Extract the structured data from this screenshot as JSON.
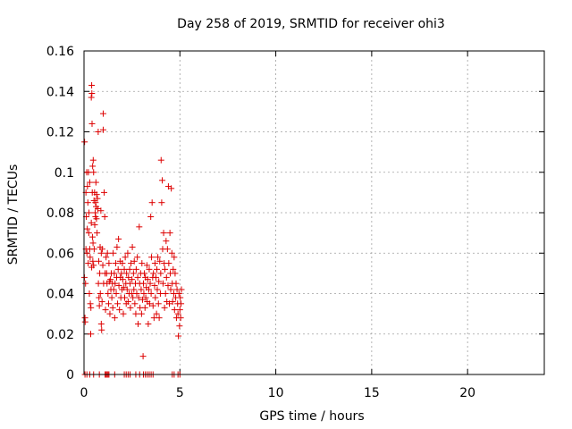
{
  "chart_data": {
    "type": "scatter",
    "title": "Day 258 of 2019, SRMTID for receiver ohi3",
    "xlabel": "GPS time / hours",
    "ylabel": "SRMTID / TECUs",
    "xlim": [
      0,
      24
    ],
    "ylim": [
      0,
      0.16
    ],
    "xticks": [
      "0",
      "5",
      "10",
      "15",
      "20"
    ],
    "yticks": [
      "0",
      "0.02",
      "0.04",
      "0.06",
      "0.08",
      "0.1",
      "0.12",
      "0.14",
      "0.16"
    ],
    "grid": true,
    "marker": "plus",
    "color": "#dd0000",
    "series": [
      {
        "points": [
          [
            0.02,
            0.048
          ],
          [
            0.03,
            0.115
          ],
          [
            0.05,
            0.028
          ],
          [
            0.06,
            0.026
          ],
          [
            0.08,
            0.045
          ],
          [
            0.1,
            0.062
          ],
          [
            0.1,
            0.09
          ],
          [
            0.12,
            0.078
          ],
          [
            0.14,
            0.1
          ],
          [
            0.15,
            0.06
          ],
          [
            0.17,
            0.072
          ],
          [
            0.18,
            0.093
          ],
          [
            0.2,
            0.085
          ],
          [
            0.22,
            0.055
          ],
          [
            0.23,
            0.1
          ],
          [
            0.25,
            0.07
          ],
          [
            0.26,
            0.08
          ],
          [
            0.28,
            0.04
          ],
          [
            0.3,
            0.095
          ],
          [
            0.3,
            0.062
          ],
          [
            0.32,
            0.058
          ],
          [
            0.33,
            0.035
          ],
          [
            0.35,
            0.02
          ],
          [
            0.36,
            0.033
          ],
          [
            0.38,
            0.137
          ],
          [
            0.38,
            0.075
          ],
          [
            0.4,
            0.053
          ],
          [
            0.4,
            0.143
          ],
          [
            0.41,
            0.139
          ],
          [
            0.42,
            0.124
          ],
          [
            0.43,
            0.09
          ],
          [
            0.44,
            0.068
          ],
          [
            0.45,
            0.103
          ],
          [
            0.46,
            0.056
          ],
          [
            0.47,
            0.065
          ],
          [
            0.48,
            0.106
          ],
          [
            0.5,
            0.1
          ],
          [
            0.5,
            0.054
          ],
          [
            0.52,
            0.086
          ],
          [
            0.53,
            0.062
          ],
          [
            0.55,
            0.09
          ],
          [
            0.56,
            0.074
          ],
          [
            0.58,
            0.08
          ],
          [
            0.6,
            0.085
          ],
          [
            0.6,
            0.078
          ],
          [
            0.62,
            0.095
          ],
          [
            0.63,
            0.083
          ],
          [
            0.65,
            0.077
          ],
          [
            0.66,
            0.089
          ],
          [
            0.68,
            0.07
          ],
          [
            0.7,
            0.087
          ],
          [
            0.72,
            0.082
          ],
          [
            0.74,
            0.12
          ],
          [
            0.75,
            0.045
          ],
          [
            0.77,
            0.056
          ],
          [
            0.78,
            0.038
          ],
          [
            0.8,
            0.034
          ],
          [
            0.82,
            0.05
          ],
          [
            0.84,
            0.063
          ],
          [
            0.85,
            0.04
          ],
          [
            0.88,
            0.081
          ],
          [
            0.9,
            0.025
          ],
          [
            0.9,
            0.06
          ],
          [
            0.92,
            0.022
          ],
          [
            0.94,
            0.036
          ],
          [
            0.95,
            0.062
          ],
          [
            0.98,
            0.054
          ],
          [
            1.0,
            0.129
          ],
          [
            1.0,
            0.121
          ],
          [
            1.02,
            0.045
          ],
          [
            1.05,
            0.09
          ],
          [
            1.08,
            0.078
          ],
          [
            1.1,
            0.05
          ],
          [
            1.12,
            0.032
          ],
          [
            1.15,
            0.058
          ],
          [
            1.18,
            0.05
          ],
          [
            1.2,
            0.045
          ],
          [
            1.22,
            0.06
          ],
          [
            1.25,
            0.04
          ],
          [
            1.28,
            0.035
          ],
          [
            1.3,
            0.055
          ],
          [
            1.32,
            0.046
          ],
          [
            1.35,
            0.03
          ],
          [
            1.38,
            0.047
          ],
          [
            1.4,
            0.042
          ],
          [
            1.42,
            0.05
          ],
          [
            1.45,
            0.038
          ],
          [
            1.48,
            0.045
          ],
          [
            1.5,
            0.033
          ],
          [
            1.52,
            0.06
          ],
          [
            1.55,
            0.042
          ],
          [
            1.58,
            0.05
          ],
          [
            1.6,
            0.028
          ],
          [
            1.62,
            0.045
          ],
          [
            1.65,
            0.055
          ],
          [
            1.68,
            0.04
          ],
          [
            1.7,
            0.048
          ],
          [
            1.72,
            0.063
          ],
          [
            1.75,
            0.035
          ],
          [
            1.78,
            0.052
          ],
          [
            1.8,
            0.067
          ],
          [
            1.82,
            0.044
          ],
          [
            1.85,
            0.032
          ],
          [
            1.88,
            0.056
          ],
          [
            1.9,
            0.048
          ],
          [
            1.92,
            0.038
          ],
          [
            1.95,
            0.05
          ],
          [
            1.98,
            0.042
          ],
          [
            2.0,
            0.055
          ],
          [
            2.02,
            0.047
          ],
          [
            2.05,
            0.03
          ],
          [
            2.08,
            0.043
          ],
          [
            2.1,
            0.052
          ],
          [
            2.12,
            0.038
          ],
          [
            2.15,
            0.058
          ],
          [
            2.18,
            0.045
          ],
          [
            2.2,
            0.035
          ],
          [
            2.22,
            0.05
          ],
          [
            2.25,
            0.042
          ],
          [
            2.28,
            0.06
          ],
          [
            2.3,
            0.036
          ],
          [
            2.32,
            0.048
          ],
          [
            2.35,
            0.04
          ],
          [
            2.38,
            0.052
          ],
          [
            2.4,
            0.045
          ],
          [
            2.42,
            0.033
          ],
          [
            2.45,
            0.055
          ],
          [
            2.48,
            0.04
          ],
          [
            2.5,
            0.047
          ],
          [
            2.52,
            0.063
          ],
          [
            2.55,
            0.038
          ],
          [
            2.58,
            0.05
          ],
          [
            2.6,
            0.042
          ],
          [
            2.62,
            0.056
          ],
          [
            2.65,
            0.035
          ],
          [
            2.68,
            0.045
          ],
          [
            2.7,
            0.03
          ],
          [
            2.72,
            0.052
          ],
          [
            2.75,
            0.04
          ],
          [
            2.78,
            0.058
          ],
          [
            2.8,
            0.048
          ],
          [
            2.82,
            0.025
          ],
          [
            2.85,
            0.038
          ],
          [
            2.88,
            0.073
          ],
          [
            2.9,
            0.045
          ],
          [
            2.92,
            0.033
          ],
          [
            2.95,
            0.05
          ],
          [
            2.98,
            0.042
          ],
          [
            3.0,
            0.03
          ],
          [
            3.02,
            0.055
          ],
          [
            3.05,
            0.037
          ],
          [
            3.08,
            0.009
          ],
          [
            3.1,
            0.045
          ],
          [
            3.12,
            0.04
          ],
          [
            3.15,
            0.05
          ],
          [
            3.18,
            0.033
          ],
          [
            3.2,
            0.048
          ],
          [
            3.22,
            0.038
          ],
          [
            3.25,
            0.043
          ],
          [
            3.28,
            0.054
          ],
          [
            3.3,
            0.036
          ],
          [
            3.32,
            0.047
          ],
          [
            3.35,
            0.025
          ],
          [
            3.38,
            0.042
          ],
          [
            3.4,
            0.052
          ],
          [
            3.42,
            0.035
          ],
          [
            3.45,
            0.045
          ],
          [
            3.48,
            0.078
          ],
          [
            3.5,
            0.04
          ],
          [
            3.52,
            0.058
          ],
          [
            3.55,
            0.085
          ],
          [
            3.58,
            0.048
          ],
          [
            3.6,
            0.034
          ],
          [
            3.62,
            0.05
          ],
          [
            3.65,
            0.028
          ],
          [
            3.68,
            0.044
          ],
          [
            3.7,
            0.055
          ],
          [
            3.72,
            0.038
          ],
          [
            3.75,
            0.048
          ],
          [
            3.78,
            0.03
          ],
          [
            3.8,
            0.052
          ],
          [
            3.82,
            0.042
          ],
          [
            3.85,
            0.058
          ],
          [
            3.88,
            0.035
          ],
          [
            3.9,
            0.046
          ],
          [
            3.92,
            0.028
          ],
          [
            3.95,
            0.056
          ],
          [
            3.98,
            0.04
          ],
          [
            4.0,
            0.05
          ],
          [
            4.02,
            0.106
          ],
          [
            4.05,
            0.085
          ],
          [
            4.08,
            0.096
          ],
          [
            4.1,
            0.062
          ],
          [
            4.12,
            0.045
          ],
          [
            4.15,
            0.07
          ],
          [
            4.18,
            0.055
          ],
          [
            4.2,
            0.033
          ],
          [
            4.22,
            0.052
          ],
          [
            4.25,
            0.04
          ],
          [
            4.28,
            0.066
          ],
          [
            4.3,
            0.048
          ],
          [
            4.32,
            0.036
          ],
          [
            4.35,
            0.062
          ],
          [
            4.38,
            0.044
          ],
          [
            4.4,
            0.093
          ],
          [
            4.42,
            0.055
          ],
          [
            4.45,
            0.035
          ],
          [
            4.48,
            0.07
          ],
          [
            4.5,
            0.05
          ],
          [
            4.52,
            0.042
          ],
          [
            4.55,
            0.092
          ],
          [
            4.58,
            0.06
          ],
          [
            4.6,
            0.045
          ],
          [
            4.62,
            0.036
          ],
          [
            4.65,
            0.052
          ],
          [
            4.68,
            0.04
          ],
          [
            4.7,
            0.058
          ],
          [
            4.72,
            0.032
          ],
          [
            4.75,
            0.05
          ],
          [
            4.78,
            0.038
          ],
          [
            4.8,
            0.045
          ],
          [
            4.82,
            0.028
          ],
          [
            4.85,
            0.042
          ],
          [
            4.88,
            0.035
          ],
          [
            4.9,
            0.03
          ],
          [
            4.92,
            0.019
          ],
          [
            4.95,
            0.04
          ],
          [
            4.98,
            0.024
          ],
          [
            5.0,
            0.032
          ],
          [
            5.02,
            0.038
          ],
          [
            5.04,
            0.028
          ],
          [
            5.06,
            0.035
          ],
          [
            5.08,
            0.042
          ],
          [
            0.05,
            0
          ],
          [
            0.15,
            0
          ],
          [
            0.3,
            0
          ],
          [
            0.5,
            0
          ],
          [
            0.8,
            0
          ],
          [
            1.1,
            0
          ],
          [
            1.15,
            0
          ],
          [
            1.2,
            0
          ],
          [
            1.25,
            0
          ],
          [
            1.3,
            0
          ],
          [
            1.6,
            0
          ],
          [
            2.1,
            0
          ],
          [
            2.2,
            0
          ],
          [
            2.3,
            0
          ],
          [
            2.4,
            0
          ],
          [
            2.7,
            0
          ],
          [
            2.9,
            0
          ],
          [
            3.1,
            0
          ],
          [
            3.2,
            0
          ],
          [
            3.3,
            0
          ],
          [
            3.4,
            0
          ],
          [
            3.5,
            0
          ],
          [
            3.6,
            0
          ],
          [
            4.6,
            0
          ],
          [
            4.7,
            0
          ],
          [
            4.9,
            0
          ],
          [
            5.0,
            0
          ]
        ]
      }
    ]
  }
}
